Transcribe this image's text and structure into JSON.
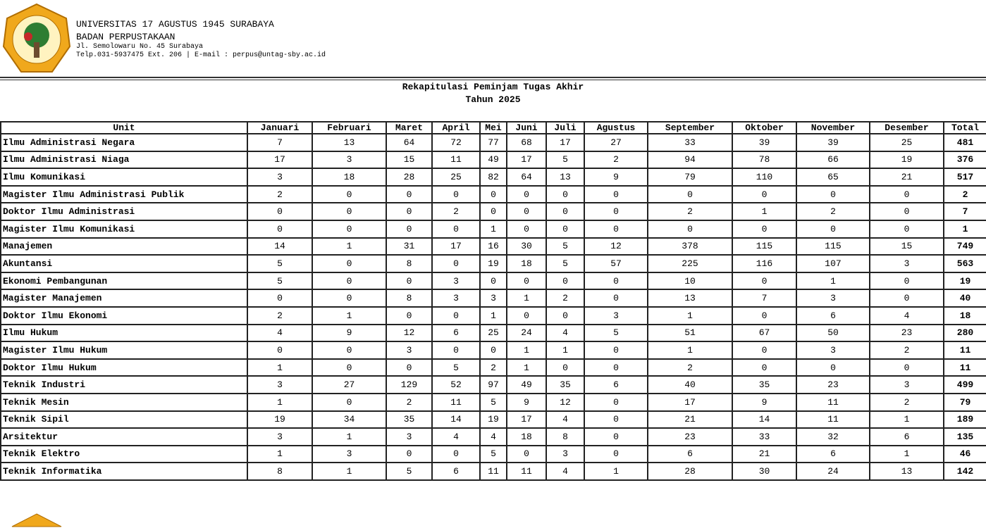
{
  "header": {
    "title": "UNIVERSITAS 17 AGUSTUS 1945 SURABAYA",
    "subtitle": "BADAN PERPUSTAKAAN",
    "address": "Jl. Semolowaru No. 45 Surabaya",
    "contact": "Telp.031-5937475 Ext. 206 | E-mail : perpus@untag-sby.ac.id"
  },
  "report": {
    "title": "Rekapitulasi Peminjam Tugas Akhir",
    "subtitle": "Tahun 2025"
  },
  "table": {
    "columns": [
      "Unit",
      "Januari",
      "Februari",
      "Maret",
      "April",
      "Mei",
      "Juni",
      "Juli",
      "Agustus",
      "September",
      "Oktober",
      "November",
      "Desember",
      "Total"
    ],
    "rows": [
      [
        "Ilmu Administrasi Negara",
        7,
        13,
        64,
        72,
        77,
        68,
        17,
        27,
        33,
        39,
        39,
        25,
        481
      ],
      [
        "Ilmu Administrasi Niaga",
        17,
        3,
        15,
        11,
        49,
        17,
        5,
        2,
        94,
        78,
        66,
        19,
        376
      ],
      [
        "Ilmu Komunikasi",
        3,
        18,
        28,
        25,
        82,
        64,
        13,
        9,
        79,
        110,
        65,
        21,
        517
      ],
      [
        "Magister Ilmu Administrasi Publik",
        2,
        0,
        0,
        0,
        0,
        0,
        0,
        0,
        0,
        0,
        0,
        0,
        2
      ],
      [
        "Doktor Ilmu Administrasi",
        0,
        0,
        0,
        2,
        0,
        0,
        0,
        0,
        2,
        1,
        2,
        0,
        7
      ],
      [
        "Magister Ilmu Komunikasi",
        0,
        0,
        0,
        0,
        1,
        0,
        0,
        0,
        0,
        0,
        0,
        0,
        1
      ],
      [
        "Manajemen",
        14,
        1,
        31,
        17,
        16,
        30,
        5,
        12,
        378,
        115,
        115,
        15,
        749
      ],
      [
        "Akuntansi",
        5,
        0,
        8,
        0,
        19,
        18,
        5,
        57,
        225,
        116,
        107,
        3,
        563
      ],
      [
        "Ekonomi Pembangunan",
        5,
        0,
        0,
        3,
        0,
        0,
        0,
        0,
        10,
        0,
        1,
        0,
        19
      ],
      [
        "Magister Manajemen",
        0,
        0,
        8,
        3,
        3,
        1,
        2,
        0,
        13,
        7,
        3,
        0,
        40
      ],
      [
        "Doktor Ilmu Ekonomi",
        2,
        1,
        0,
        0,
        1,
        0,
        0,
        3,
        1,
        0,
        6,
        4,
        18
      ],
      [
        "Ilmu Hukum",
        4,
        9,
        12,
        6,
        25,
        24,
        4,
        5,
        51,
        67,
        50,
        23,
        280
      ],
      [
        "Magister Ilmu Hukum",
        0,
        0,
        3,
        0,
        0,
        1,
        1,
        0,
        1,
        0,
        3,
        2,
        11
      ],
      [
        "Doktor Ilmu Hukum",
        1,
        0,
        0,
        5,
        2,
        1,
        0,
        0,
        2,
        0,
        0,
        0,
        11
      ],
      [
        "Teknik Industri",
        3,
        27,
        129,
        52,
        97,
        49,
        35,
        6,
        40,
        35,
        23,
        3,
        499
      ],
      [
        "Teknik Mesin",
        1,
        0,
        2,
        11,
        5,
        9,
        12,
        0,
        17,
        9,
        11,
        2,
        79
      ],
      [
        "Teknik Sipil",
        19,
        34,
        35,
        14,
        19,
        17,
        4,
        0,
        21,
        14,
        11,
        1,
        189
      ],
      [
        "Arsitektur",
        3,
        1,
        3,
        4,
        4,
        18,
        8,
        0,
        23,
        33,
        32,
        6,
        135
      ],
      [
        "Teknik Elektro",
        1,
        3,
        0,
        0,
        5,
        0,
        3,
        0,
        6,
        21,
        6,
        1,
        46
      ],
      [
        "Teknik Informatika",
        8,
        1,
        5,
        6,
        11,
        11,
        4,
        1,
        28,
        30,
        24,
        13,
        142
      ]
    ]
  }
}
